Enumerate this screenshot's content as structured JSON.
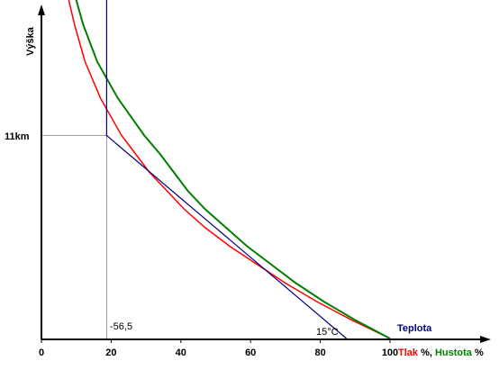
{
  "chart_data": {
    "type": "line",
    "ylabel": "Výška",
    "x_ticks": [
      "0",
      "20",
      "40",
      "60",
      "80",
      "100"
    ],
    "xlim": [
      0,
      100
    ],
    "y_marker_label": "11km",
    "temp_min_label": "-56,5",
    "temp_surface_label": "15°C",
    "legend": {
      "teplota": "Teplota",
      "tlak": "Tlak",
      "pct1": " %, ",
      "hustota": "Hustota",
      "pct2": " %"
    },
    "colors": {
      "tlak": "#ff0000",
      "hustota": "#008000",
      "teplota": "#000080",
      "axis": "#000000",
      "guide": "#808080"
    },
    "series": [
      {
        "name": "Tlak",
        "y_km": [
          0,
          1,
          2,
          3,
          4,
          5,
          6,
          7,
          8,
          9,
          10,
          11,
          13,
          15,
          17,
          19,
          21
        ],
        "x_percent": [
          100,
          89,
          79,
          70,
          62,
          54,
          47,
          41,
          36,
          31,
          27,
          23,
          17,
          12.5,
          9.5,
          7,
          5
        ]
      },
      {
        "name": "Hustota",
        "y_km": [
          0,
          1,
          2,
          3,
          4,
          5,
          6,
          7,
          8,
          9,
          10,
          11,
          13,
          15,
          17,
          19,
          20.5
        ],
        "x_percent": [
          100,
          90,
          81,
          73,
          66,
          59,
          53,
          47,
          42,
          38,
          34,
          29.5,
          22,
          16,
          12,
          9,
          7
        ]
      },
      {
        "name": "Teplota",
        "y_km": [
          0,
          11,
          11,
          21.5
        ],
        "x_axis": [
          87.5,
          18.7,
          18.7,
          18.7
        ]
      }
    ]
  }
}
